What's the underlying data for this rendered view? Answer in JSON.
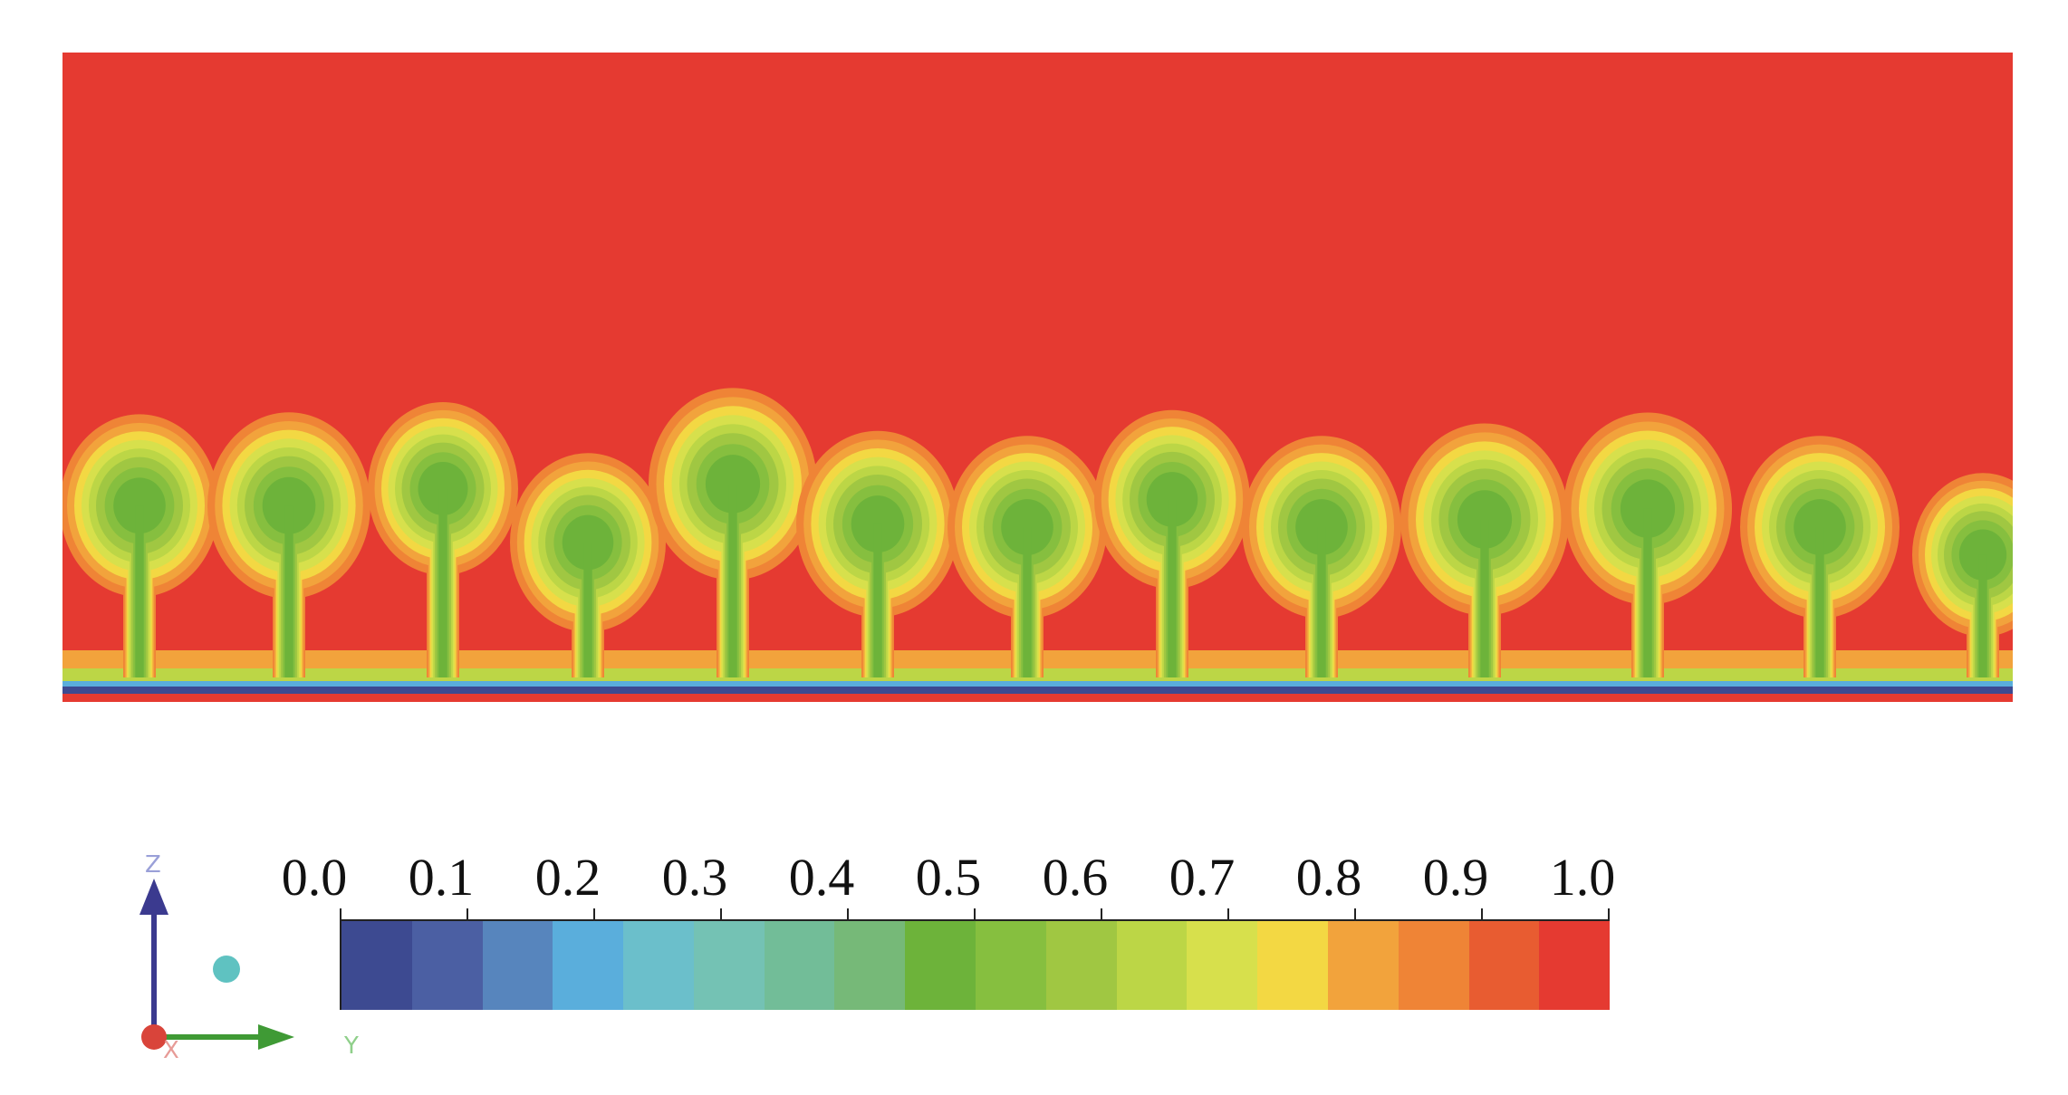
{
  "colorbar": {
    "tick_labels": [
      "0.0",
      "0.1",
      "0.2",
      "0.3",
      "0.4",
      "0.5",
      "0.6",
      "0.7",
      "0.8",
      "0.9",
      "1.0"
    ],
    "bands": [
      "#3d4a91",
      "#4b5fa3",
      "#5785bd",
      "#5aaedc",
      "#6bbfcb",
      "#74c2b4",
      "#72bd98",
      "#76b978",
      "#6db33a",
      "#86bf3f",
      "#a0c742",
      "#bcd646",
      "#d7e04c",
      "#f3d843",
      "#f2a33c",
      "#ef8436",
      "#e85c31",
      "#e53a31"
    ]
  },
  "axes": {
    "z_label": "Z",
    "y_label": "Y",
    "x_label": "X",
    "z_color": "#3b3a8f",
    "y_color": "#3f9a35",
    "x_color": "#d9443a"
  },
  "field": {
    "background_color": "#e53a31",
    "plume_count": 13
  }
}
